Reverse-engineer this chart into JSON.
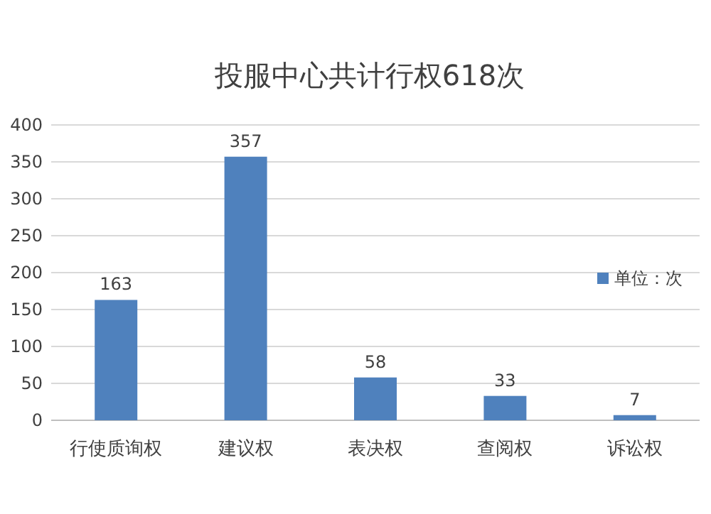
{
  "chart_data": {
    "type": "bar",
    "title": "投服中心共计行权618次",
    "categories": [
      "行使质询权",
      "建议权",
      "表决权",
      "查阅权",
      "诉讼权"
    ],
    "series": [
      {
        "name": "单位：次",
        "color": "#4f81bd",
        "values": [
          163,
          357,
          58,
          33,
          7
        ]
      }
    ],
    "ylim": [
      0,
      400
    ],
    "yticks": [
      0,
      50,
      100,
      150,
      200,
      250,
      300,
      350,
      400
    ],
    "grid": "y",
    "data_labels": true,
    "legend": "right"
  }
}
